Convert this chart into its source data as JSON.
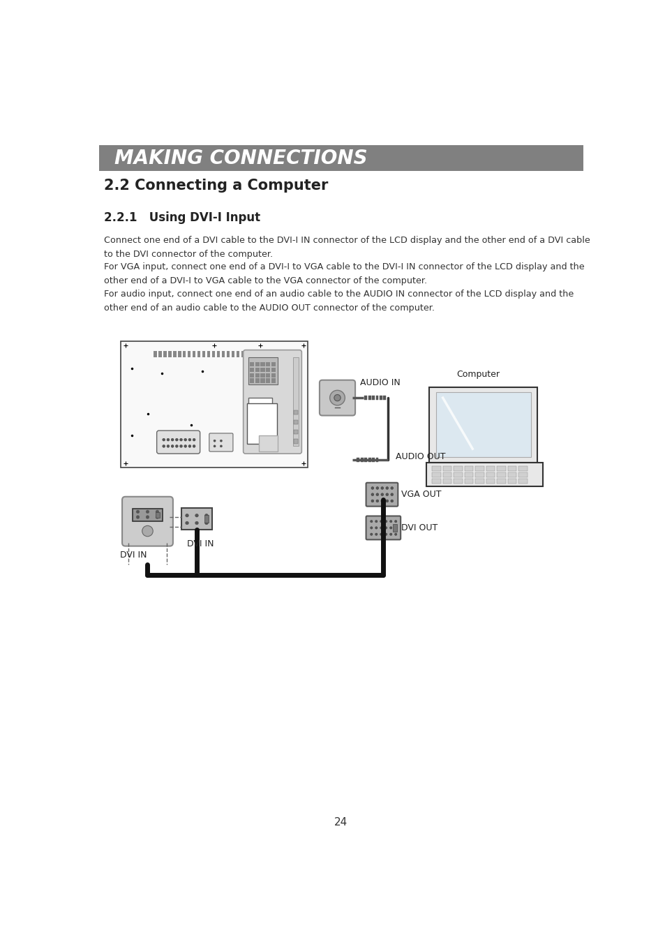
{
  "page_bg": "#ffffff",
  "header_bg": "#808080",
  "header_text": "MAKING CONNECTIONS",
  "header_text_color": "#ffffff",
  "section_title": "2.2 Connecting a Computer",
  "subsection_title": "2.2.1   Using DVI-I Input",
  "para1": "Connect one end of a DVI cable to the DVI-I IN connector of the LCD display and the other end of a DVI cable\nto the DVI connector of the computer.",
  "para2": "For VGA input, connect one end of a DVI-I to VGA cable to the DVI-I IN connector of the LCD display and the\nother end of a DVI-I to VGA cable to the VGA connector of the computer.",
  "para3": "For audio input, connect one end of an audio cable to the AUDIO IN connector of the LCD display and the\nother end of an audio cable to the AUDIO OUT connector of the computer.",
  "page_number": "24",
  "label_audio_in": "AUDIO IN",
  "label_audio_out": "AUDIO OUT",
  "label_vga_out": "VGA OUT",
  "label_dvi_out": "DVI OUT",
  "label_dvi_in_left": "DVI IN",
  "label_dvi_in_right": "DVI IN",
  "label_computer": "Computer"
}
